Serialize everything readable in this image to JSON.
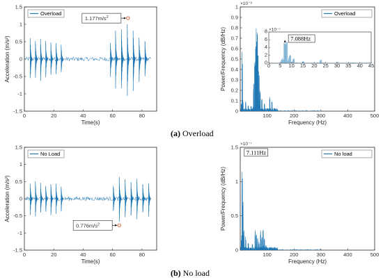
{
  "captions": {
    "a_letter": "(a)",
    "a_text": " Overload",
    "b_letter": "(b)",
    "b_text": " No load"
  },
  "colors": {
    "series": "#1f77b4",
    "axis": "#262626",
    "marker": "#d9541e"
  },
  "chart_data": [
    {
      "id": "accel_overload",
      "type": "line",
      "xlabel": "Time(s)",
      "ylabel": "Acceleration (m/s²)",
      "xlim": [
        0,
        90
      ],
      "ylim": [
        -1.5,
        1.5
      ],
      "xticks": [
        0,
        20,
        40,
        60,
        80
      ],
      "yticks": [
        -1.5,
        -1,
        -0.5,
        0,
        0.5,
        1,
        1.5
      ],
      "ytick_labels": [
        "-1.5",
        "-1",
        "-0.5",
        "0",
        "0.5",
        "1",
        "1.5"
      ],
      "legend": "Overload",
      "legend_position": "top-left",
      "bursts": [
        {
          "t": 4.0,
          "a": 0.62
        },
        {
          "t": 7.5,
          "a": 0.6
        },
        {
          "t": 11.0,
          "a": 0.58
        },
        {
          "t": 14.5,
          "a": 0.55
        },
        {
          "t": 18.0,
          "a": 0.58
        },
        {
          "t": 21.5,
          "a": 0.52
        },
        {
          "t": 25.0,
          "a": 0.48
        },
        {
          "t": 58.5,
          "a": 0.62
        },
        {
          "t": 62.0,
          "a": 0.85
        },
        {
          "t": 66.0,
          "a": 1.0
        },
        {
          "t": 70.0,
          "a": 1.1
        },
        {
          "t": 74.0,
          "a": 0.92
        },
        {
          "t": 78.0,
          "a": 0.75
        },
        {
          "t": 82.0,
          "a": 0.65
        }
      ],
      "annotation": {
        "text_base": "1.177m/s",
        "text_sup": "2",
        "point_x": 70.5,
        "point_y": 1.177
      }
    },
    {
      "id": "psd_overload",
      "type": "line",
      "xlabel": "Frequency (Hz)",
      "ylabel": "Power/Frequency (dB/Hz)",
      "xlim": [
        0,
        500
      ],
      "ylim": [
        0,
        1
      ],
      "xticks": [
        100,
        200,
        300,
        400,
        500
      ],
      "yticks": [
        0,
        0.1,
        0.2,
        0.3,
        0.4,
        0.5,
        0.6,
        0.7,
        0.8,
        0.9,
        1
      ],
      "ytick_labels": [
        "0",
        "0.1",
        "0.2",
        "0.3",
        "0.4",
        "0.5",
        "0.6",
        "0.7",
        "0.8",
        "0.9",
        "1"
      ],
      "y_exponent": "×10⁻⁶",
      "legend": "Overload",
      "legend_position": "top-right",
      "peaks": [
        {
          "f": 7.1,
          "v": 0.6
        },
        {
          "f": 10,
          "v": 0.12
        },
        {
          "f": 20,
          "v": 0.1
        },
        {
          "f": 30,
          "v": 0.06
        },
        {
          "f": 40,
          "v": 0.05
        },
        {
          "f": 50,
          "v": 0.28
        },
        {
          "f": 54,
          "v": 0.5
        },
        {
          "f": 57,
          "v": 0.62
        },
        {
          "f": 60,
          "v": 0.85
        },
        {
          "f": 63,
          "v": 0.78
        },
        {
          "f": 66,
          "v": 0.6
        },
        {
          "f": 70,
          "v": 0.45
        },
        {
          "f": 74,
          "v": 0.2
        },
        {
          "f": 80,
          "v": 0.13
        },
        {
          "f": 90,
          "v": 0.08
        },
        {
          "f": 110,
          "v": 0.15
        },
        {
          "f": 118,
          "v": 0.1
        },
        {
          "f": 250,
          "v": 0.03
        }
      ],
      "inset": {
        "xlim": [
          0,
          45
        ],
        "ylim": [
          0,
          8
        ],
        "xticks": [
          0,
          5,
          10,
          15,
          20,
          25,
          30,
          35,
          40,
          45
        ],
        "yticks": [
          0,
          2,
          4,
          6,
          8
        ],
        "y_exponent": "×10⁻⁷",
        "peaks": [
          {
            "f": 7.088,
            "v": 6.1
          },
          {
            "f": 8,
            "v": 5.8
          },
          {
            "f": 9.5,
            "v": 2.2
          },
          {
            "f": 11,
            "v": 1.2
          },
          {
            "f": 15,
            "v": 0.5
          },
          {
            "f": 23,
            "v": 0.9
          },
          {
            "f": 30,
            "v": 0.3
          },
          {
            "f": 37,
            "v": 0.2
          }
        ],
        "annotation": {
          "text": "7.088Hz",
          "point_x": 7.088,
          "point_y": 6.1
        }
      }
    },
    {
      "id": "accel_noload",
      "type": "line",
      "xlabel": "Time(s)",
      "ylabel": "Acceleration (m/s²)",
      "xlim": [
        0,
        90
      ],
      "ylim": [
        -1.5,
        1.5
      ],
      "xticks": [
        0,
        20,
        40,
        60,
        80
      ],
      "yticks": [
        -1.5,
        -1,
        -0.5,
        0,
        0.5,
        1,
        1.5
      ],
      "ytick_labels": [
        "-1.5",
        "-1",
        "-0.5",
        "0",
        "0.5",
        "1",
        "1.5"
      ],
      "legend": "No Load",
      "legend_position": "top-left",
      "bursts": [
        {
          "t": 4.0,
          "a": 0.5
        },
        {
          "t": 7.5,
          "a": 0.52
        },
        {
          "t": 11.0,
          "a": 0.5
        },
        {
          "t": 14.5,
          "a": 0.48
        },
        {
          "t": 18.0,
          "a": 0.5
        },
        {
          "t": 21.5,
          "a": 0.46
        },
        {
          "t": 25.0,
          "a": 0.42
        },
        {
          "t": 60.5,
          "a": 0.48
        },
        {
          "t": 64.5,
          "a": 0.78
        },
        {
          "t": 68.5,
          "a": 0.6
        },
        {
          "t": 72.5,
          "a": 0.62
        },
        {
          "t": 76.5,
          "a": 0.6
        },
        {
          "t": 80.5,
          "a": 0.55
        },
        {
          "t": 84.5,
          "a": 0.5
        }
      ],
      "annotation": {
        "text_base": "0.776m/s",
        "text_sup": "2",
        "point_x": 64.5,
        "point_y": -0.776
      }
    },
    {
      "id": "psd_noload",
      "type": "line",
      "xlabel": "Frequency (Hz)",
      "ylabel": "Power/Frequency (dB/Hz)",
      "xlim": [
        0,
        500
      ],
      "ylim": [
        0,
        1.5
      ],
      "xticks": [
        100,
        200,
        300,
        400,
        500
      ],
      "yticks": [
        0,
        0.5,
        1,
        1.5
      ],
      "ytick_labels": [
        "0",
        "0.5",
        "1",
        "1.5"
      ],
      "y_exponent": "×10⁻⁷",
      "legend": "No load",
      "legend_position": "top-right",
      "peaks": [
        {
          "f": 7.111,
          "v": 1.42
        },
        {
          "f": 10,
          "v": 0.72
        },
        {
          "f": 14,
          "v": 0.3
        },
        {
          "f": 20,
          "v": 0.2
        },
        {
          "f": 30,
          "v": 0.12
        },
        {
          "f": 45,
          "v": 0.1
        },
        {
          "f": 55,
          "v": 0.3
        },
        {
          "f": 60,
          "v": 0.25
        },
        {
          "f": 65,
          "v": 0.18
        },
        {
          "f": 70,
          "v": 0.12
        },
        {
          "f": 75,
          "v": 0.3
        },
        {
          "f": 80,
          "v": 0.2
        },
        {
          "f": 85,
          "v": 0.35
        },
        {
          "f": 90,
          "v": 0.18
        },
        {
          "f": 95,
          "v": 0.08
        }
      ],
      "annotation": {
        "text": "7.111Hz",
        "point_x": 7.111,
        "point_y": 1.42
      }
    }
  ]
}
